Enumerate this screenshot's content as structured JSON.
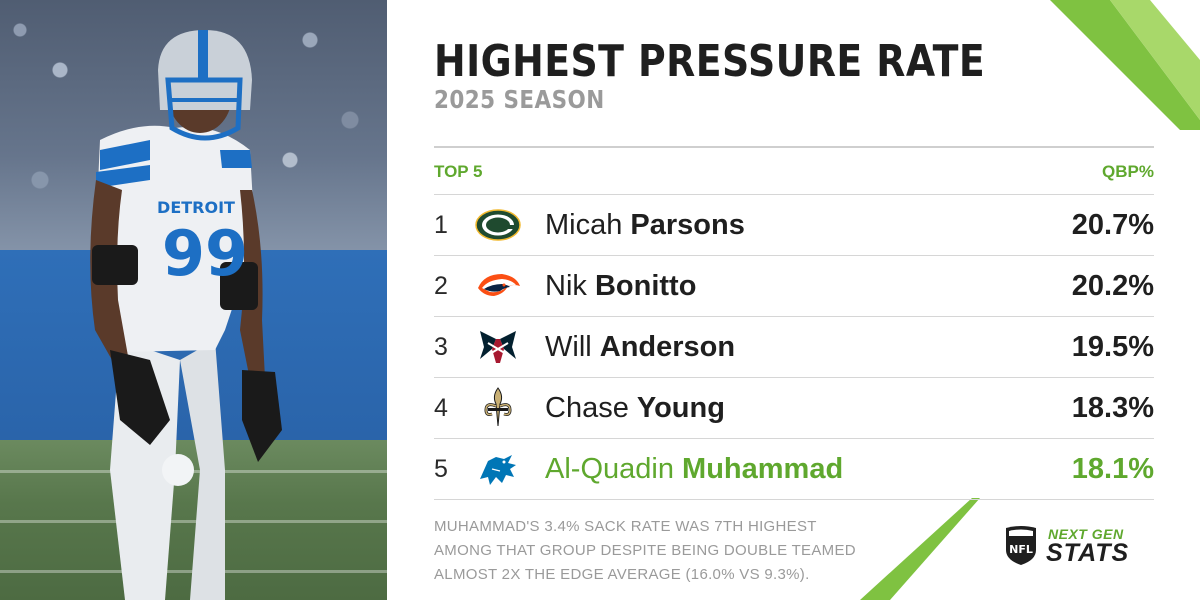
{
  "header": {
    "title": "HIGHEST PRESSURE RATE",
    "subtitle": "2025 SEASON"
  },
  "table": {
    "left_header": "TOP 5",
    "right_header": "QBP%",
    "rows": [
      {
        "rank": "1",
        "first": "Micah",
        "last": "Parsons",
        "value": "20.7%",
        "team_icon": "packers-logo-icon"
      },
      {
        "rank": "2",
        "first": "Nik",
        "last": "Bonitto",
        "value": "20.2%",
        "team_icon": "broncos-logo-icon"
      },
      {
        "rank": "3",
        "first": "Will",
        "last": "Anderson",
        "value": "19.5%",
        "team_icon": "texans-logo-icon"
      },
      {
        "rank": "4",
        "first": "Chase",
        "last": "Young",
        "value": "18.3%",
        "team_icon": "saints-logo-icon"
      },
      {
        "rank": "5",
        "first": "Al-Quadin",
        "last": "Muhammad",
        "value": "18.1%",
        "team_icon": "lions-logo-icon",
        "highlighted": true
      }
    ]
  },
  "footnote": {
    "line1": "MUHAMMAD'S 3.4% SACK RATE WAS 7TH HIGHEST",
    "line2": "AMONG THAT GROUP DESPITE BEING DOUBLE TEAMED",
    "line3": "ALMOST 2X THE EDGE AVERAGE (16.0% VS 9.3%)."
  },
  "branding": {
    "shield_text": "NFL",
    "line1": "NEXT GEN",
    "line2": "STATS"
  },
  "photo": {
    "jersey_text": "DETROIT",
    "jersey_number": "99"
  },
  "colors": {
    "accent_green": "#5fa82e",
    "title_dark": "#1f1f1f",
    "muted_gray": "#9a9a9a",
    "lions_blue": "#0076b6"
  }
}
